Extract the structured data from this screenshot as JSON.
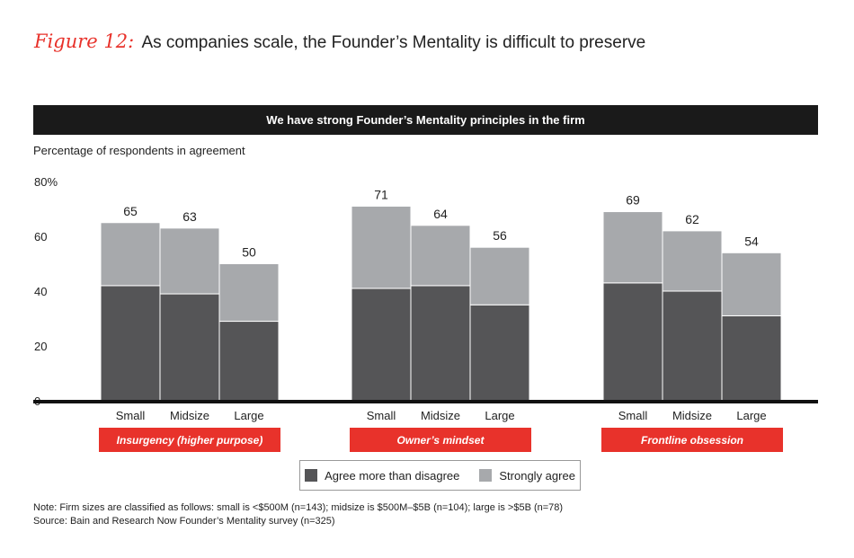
{
  "figure": {
    "label": "Figure 12:",
    "title": "As companies scale, the Founder’s Mentality is difficult to preserve"
  },
  "banner": "We have strong Founder’s Mentality principles in the firm",
  "colors": {
    "agree": "#555557",
    "strongly": "#a7a9ac",
    "accent": "#e8322b",
    "banner": "#1a1a1a"
  },
  "chart_data": {
    "type": "bar",
    "stacked": true,
    "title": "We have strong Founder’s Mentality principles in the firm",
    "ylabel": "Percentage of respondents in agreement",
    "ylim": [
      0,
      80
    ],
    "yticks": [
      "80%",
      "60",
      "40",
      "20",
      "0"
    ],
    "ytick_values": [
      80,
      60,
      40,
      20,
      0
    ],
    "groups": [
      {
        "name": "Insurgency (higher purpose)",
        "categories": [
          "Small",
          "Midsize",
          "Large"
        ],
        "agree": [
          42,
          39,
          29
        ],
        "strongly": [
          23,
          24,
          21
        ],
        "totals": [
          65,
          63,
          50
        ]
      },
      {
        "name": "Owner’s mindset",
        "categories": [
          "Small",
          "Midsize",
          "Large"
        ],
        "agree": [
          41,
          42,
          35
        ],
        "strongly": [
          30,
          22,
          21
        ],
        "totals": [
          71,
          64,
          56
        ]
      },
      {
        "name": "Frontline obsession",
        "categories": [
          "Small",
          "Midsize",
          "Large"
        ],
        "agree": [
          43,
          40,
          31
        ],
        "strongly": [
          26,
          22,
          23
        ],
        "totals": [
          69,
          62,
          54
        ]
      }
    ],
    "series": [
      {
        "name": "Agree more than disagree",
        "key": "agree"
      },
      {
        "name": "Strongly agree",
        "key": "strongly"
      }
    ]
  },
  "legend": {
    "agree": "Agree more than disagree",
    "strongly": "Strongly agree"
  },
  "notes": {
    "line1": "Note: Firm sizes are classified as follows: small is <$500M (n=143); midsize is $500M–$5B (n=104); large is >$5B (n=78)",
    "line2": "Source: Bain and Research Now Founder’s Mentality survey (n=325)"
  }
}
